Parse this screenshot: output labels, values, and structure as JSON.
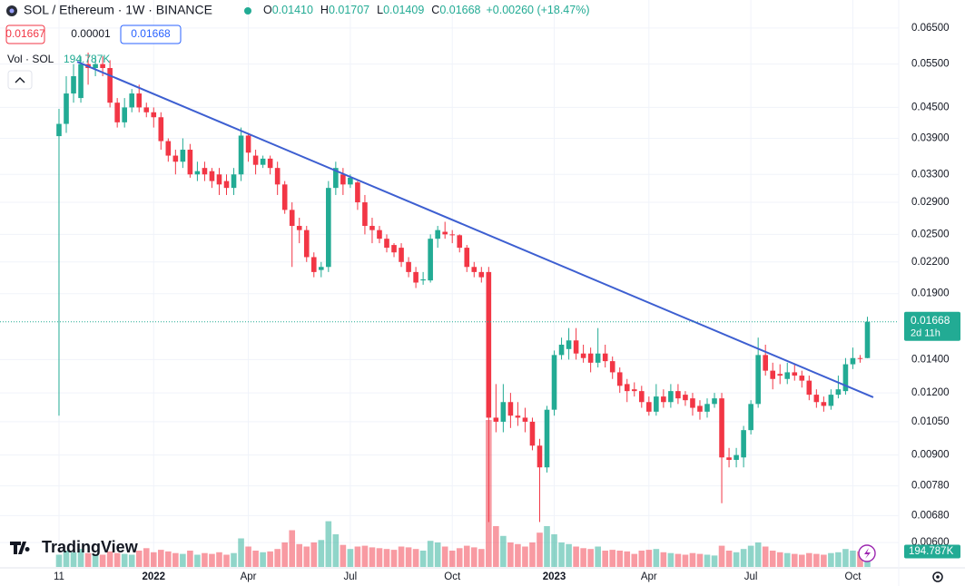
{
  "chart_data": {
    "type": "candlestick",
    "title": "SOL / Ethereum · 1W · BINANCE",
    "legend_values": [
      {
        "key": "O",
        "value": "0.01410"
      },
      {
        "key": "H",
        "value": "0.01707"
      },
      {
        "key": "L",
        "value": "0.01409"
      },
      {
        "key": "C",
        "value": "0.01668"
      }
    ],
    "change": "+0.00260 (+18.47%)",
    "quote_boxes": [
      "0.01667",
      "0.00001",
      "0.01668"
    ],
    "volume_title": "Vol · SOL",
    "volume_value": "194.787K",
    "price_label": "0.01668",
    "countdown": "2d 11h",
    "brand": "TradingView",
    "log_scale": true,
    "grid": true,
    "up_color": "#22ab94",
    "down_color": "#f23645",
    "xlim": [
      -8.1,
      115.3
    ],
    "ylim": [
      0.00536,
      0.074
    ],
    "xticks": [
      {
        "value": 0,
        "label": "11"
      },
      {
        "value": 13,
        "label": "2022"
      },
      {
        "value": 26,
        "label": "Apr"
      },
      {
        "value": 40,
        "label": "Jul"
      },
      {
        "value": 54,
        "label": "Oct"
      },
      {
        "value": 68,
        "label": "2023"
      },
      {
        "value": 81,
        "label": "Apr"
      },
      {
        "value": 95,
        "label": "Jul"
      },
      {
        "value": 109,
        "label": "Oct"
      }
    ],
    "yticks": [
      {
        "value": 0.065,
        "label": "0.06500"
      },
      {
        "value": 0.055,
        "label": "0.05500"
      },
      {
        "value": 0.045,
        "label": "0.04500"
      },
      {
        "value": 0.039,
        "label": "0.03900"
      },
      {
        "value": 0.033,
        "label": "0.03300"
      },
      {
        "value": 0.029,
        "label": "0.02900"
      },
      {
        "value": 0.025,
        "label": "0.02500"
      },
      {
        "value": 0.022,
        "label": "0.02200"
      },
      {
        "value": 0.019,
        "label": "0.01900"
      },
      {
        "value": 0.014,
        "label": "0.01400"
      },
      {
        "value": 0.012,
        "label": "0.01200"
      },
      {
        "value": 0.0105,
        "label": "0.01050"
      },
      {
        "value": 0.009,
        "label": "0.00900"
      },
      {
        "value": 0.0078,
        "label": "0.00780"
      },
      {
        "value": 0.0068,
        "label": "0.00680"
      },
      {
        "value": 0.006,
        "label": "0.00600"
      }
    ],
    "open": [
      0.0394,
      0.0417,
      0.048,
      0.047,
      0.055,
      0.054,
      0.055,
      0.054,
      0.046,
      0.042,
      0.045,
      0.048,
      0.045,
      0.044,
      0.043,
      0.0385,
      0.036,
      0.035,
      0.037,
      0.033,
      0.034,
      0.0335,
      0.033,
      0.032,
      0.031,
      0.033,
      0.0395,
      0.036,
      0.0345,
      0.0355,
      0.034,
      0.0315,
      0.028,
      0.026,
      0.0255,
      0.0225,
      0.0212,
      0.0215,
      0.031,
      0.033,
      0.0315,
      0.0318,
      0.029,
      0.026,
      0.0255,
      0.0245,
      0.0238,
      0.0235,
      0.022,
      0.021,
      0.0202,
      0.0202,
      0.0245,
      0.0253,
      0.025,
      0.0249,
      0.0235,
      0.0215,
      0.021,
      0.021,
      0.0107,
      0.0105,
      0.0115,
      0.0108,
      0.0107,
      0.0105,
      0.0094,
      0.0085,
      0.0111,
      0.0143,
      0.0147,
      0.0153,
      0.0144,
      0.0144,
      0.0138,
      0.0144,
      0.0139,
      0.0132,
      0.0125,
      0.0122,
      0.0121,
      0.0115,
      0.011,
      0.0118,
      0.0115,
      0.0121,
      0.0119,
      0.0117,
      0.0113,
      0.011,
      0.0114,
      0.0117,
      0.0089,
      0.0088,
      0.0089,
      0.0101,
      0.0114,
      0.0143,
      0.0133,
      0.0131,
      0.0128,
      0.0132,
      0.013,
      0.0127,
      0.0119,
      0.0115,
      0.0113,
      0.0119,
      0.0121,
      0.0137,
      0.0141,
      0.0141
    ],
    "high": [
      0.0447,
      0.052,
      0.055,
      0.057,
      0.058,
      0.057,
      0.057,
      0.056,
      0.047,
      0.047,
      0.049,
      0.05,
      0.046,
      0.045,
      0.044,
      0.039,
      0.037,
      0.039,
      0.038,
      0.035,
      0.035,
      0.034,
      0.034,
      0.033,
      0.034,
      0.041,
      0.04,
      0.037,
      0.036,
      0.036,
      0.035,
      0.032,
      0.029,
      0.027,
      0.026,
      0.023,
      0.022,
      0.032,
      0.035,
      0.034,
      0.033,
      0.032,
      0.03,
      0.027,
      0.026,
      0.025,
      0.024,
      0.024,
      0.0225,
      0.0215,
      0.021,
      0.025,
      0.026,
      0.0265,
      0.0255,
      0.025,
      0.0238,
      0.022,
      0.0215,
      0.0215,
      0.0125,
      0.0125,
      0.012,
      0.0115,
      0.0112,
      0.0107,
      0.0097,
      0.0113,
      0.0146,
      0.0155,
      0.0162,
      0.0162,
      0.015,
      0.0148,
      0.0162,
      0.015,
      0.0142,
      0.0135,
      0.0128,
      0.0126,
      0.0124,
      0.0118,
      0.0125,
      0.0122,
      0.0125,
      0.0125,
      0.0121,
      0.012,
      0.0116,
      0.0117,
      0.012,
      0.012,
      0.0093,
      0.0093,
      0.0103,
      0.0116,
      0.0155,
      0.015,
      0.0138,
      0.0137,
      0.0138,
      0.0137,
      0.0133,
      0.013,
      0.0122,
      0.0118,
      0.0122,
      0.013,
      0.0141,
      0.0148,
      0.0143,
      0.01707
    ],
    "low": [
      0.0108,
      0.04,
      0.046,
      0.046,
      0.05,
      0.052,
      0.052,
      0.045,
      0.041,
      0.041,
      0.044,
      0.044,
      0.043,
      0.041,
      0.037,
      0.035,
      0.033,
      0.034,
      0.0325,
      0.032,
      0.032,
      0.031,
      0.03,
      0.03,
      0.03,
      0.032,
      0.035,
      0.033,
      0.034,
      0.033,
      0.03,
      0.0275,
      0.0215,
      0.024,
      0.022,
      0.0205,
      0.0205,
      0.021,
      0.03,
      0.03,
      0.031,
      0.028,
      0.025,
      0.024,
      0.024,
      0.023,
      0.0225,
      0.0215,
      0.0205,
      0.0195,
      0.0198,
      0.02,
      0.0235,
      0.0245,
      0.024,
      0.023,
      0.021,
      0.0205,
      0.02,
      0.0066,
      0.01,
      0.01,
      0.0102,
      0.0103,
      0.01,
      0.0092,
      0.0066,
      0.0083,
      0.0108,
      0.014,
      0.014,
      0.014,
      0.0138,
      0.0132,
      0.0135,
      0.0135,
      0.0128,
      0.012,
      0.0115,
      0.0118,
      0.0112,
      0.0108,
      0.0108,
      0.0112,
      0.0112,
      0.0114,
      0.0113,
      0.0108,
      0.0106,
      0.0107,
      0.0112,
      0.0072,
      0.0085,
      0.0085,
      0.0085,
      0.0099,
      0.0112,
      0.013,
      0.0122,
      0.0125,
      0.0125,
      0.0127,
      0.0123,
      0.0116,
      0.0112,
      0.011,
      0.0111,
      0.0117,
      0.0119,
      0.0134,
      0.0138,
      0.01409
    ],
    "close": [
      0.0417,
      0.048,
      0.052,
      0.055,
      0.054,
      0.055,
      0.054,
      0.046,
      0.042,
      0.045,
      0.048,
      0.045,
      0.044,
      0.043,
      0.0385,
      0.036,
      0.035,
      0.037,
      0.033,
      0.0335,
      0.033,
      0.032,
      0.0315,
      0.031,
      0.033,
      0.0395,
      0.0365,
      0.0345,
      0.0355,
      0.034,
      0.0315,
      0.028,
      0.026,
      0.0255,
      0.0225,
      0.021,
      0.0215,
      0.031,
      0.034,
      0.0315,
      0.0325,
      0.029,
      0.026,
      0.0255,
      0.0245,
      0.0235,
      0.023,
      0.022,
      0.021,
      0.02,
      0.0203,
      0.0245,
      0.0255,
      0.025,
      0.0249,
      0.0235,
      0.0215,
      0.021,
      0.0205,
      0.0107,
      0.0105,
      0.0115,
      0.0108,
      0.0107,
      0.0105,
      0.0094,
      0.0085,
      0.0111,
      0.0143,
      0.015,
      0.0153,
      0.0144,
      0.0141,
      0.0138,
      0.0144,
      0.0139,
      0.0132,
      0.0124,
      0.0121,
      0.0121,
      0.0115,
      0.011,
      0.0118,
      0.0115,
      0.0121,
      0.0117,
      0.0116,
      0.0112,
      0.011,
      0.0114,
      0.0117,
      0.0089,
      0.0088,
      0.009,
      0.0101,
      0.0114,
      0.0143,
      0.0133,
      0.0128,
      0.013,
      0.0132,
      0.013,
      0.0127,
      0.0119,
      0.0115,
      0.0113,
      0.0119,
      0.0122,
      0.0137,
      0.0141,
      0.01408,
      0.01668
    ],
    "volume": [
      150000,
      200000,
      180000,
      220000,
      170000,
      160000,
      150000,
      190000,
      170000,
      160000,
      150000,
      200000,
      230000,
      180000,
      210000,
      190000,
      170000,
      160000,
      200000,
      150000,
      170000,
      160000,
      180000,
      150000,
      170000,
      350000,
      250000,
      200000,
      180000,
      190000,
      220000,
      300000,
      450000,
      280000,
      250000,
      300000,
      330000,
      560000,
      400000,
      270000,
      220000,
      250000,
      260000,
      240000,
      230000,
      220000,
      210000,
      250000,
      240000,
      220000,
      200000,
      320000,
      300000,
      250000,
      200000,
      230000,
      260000,
      240000,
      220000,
      1800000,
      500000,
      380000,
      300000,
      280000,
      250000,
      300000,
      420000,
      500000,
      400000,
      300000,
      280000,
      250000,
      230000,
      220000,
      250000,
      200000,
      210000,
      200000,
      190000,
      160000,
      200000,
      210000,
      220000,
      180000,
      170000,
      160000,
      150000,
      170000,
      160000,
      150000,
      140000,
      260000,
      200000,
      180000,
      220000,
      260000,
      300000,
      250000,
      200000,
      180000,
      170000,
      160000,
      150000,
      170000,
      160000,
      150000,
      170000,
      180000,
      220000,
      200000,
      190000,
      194787
    ],
    "volume_lim": [
      0,
      3000000
    ],
    "trendline": {
      "x": [
        2.5,
        111.8
      ],
      "values": [
        0.0556,
        0.01176
      ],
      "color": "#3d5fd1"
    }
  }
}
